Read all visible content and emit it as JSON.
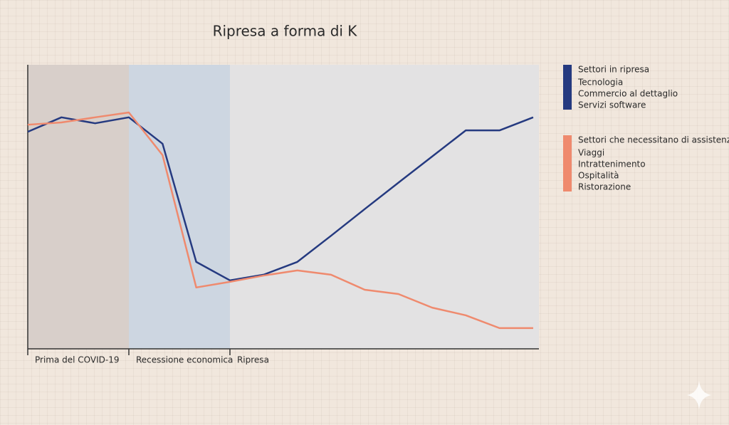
{
  "chart_data": {
    "type": "line",
    "title": "Ripresa a forma di K",
    "ylim": [
      0,
      100
    ],
    "plot_background": "#e3e2e3",
    "phases": [
      {
        "label": "Prima del COVID-19",
        "start": 0,
        "end": 3,
        "color": "#d8cfca"
      },
      {
        "label": "Recessione economica",
        "start": 3,
        "end": 6,
        "color": "#cdd6e1"
      },
      {
        "label": "Ripresa",
        "start": 6,
        "end": 15,
        "color": "#e3e2e3"
      }
    ],
    "series": [
      {
        "name": "Settori in ripresa",
        "color": "#253a80",
        "items": [
          "Tecnologia",
          "Commercio al dettaglio",
          "Servizi software"
        ],
        "values": [
          76.4,
          81.5,
          79.4,
          81.5,
          72.2,
          30.6,
          24.1,
          26.1,
          30.6,
          39.8,
          49.2,
          58.5,
          67.7,
          76.9,
          76.9,
          81.5
        ]
      },
      {
        "name": "Settori che necessitano di assistenza",
        "color": "#ef8a6e",
        "items": [
          "Viaggi",
          "Intrattenimento",
          "Ospitalità",
          "Ristorazione"
        ],
        "values": [
          78.9,
          79.7,
          81.5,
          83.2,
          68.2,
          21.6,
          23.6,
          25.8,
          27.6,
          26.1,
          20.8,
          19.3,
          14.5,
          11.8,
          7.3,
          7.3
        ]
      }
    ]
  }
}
